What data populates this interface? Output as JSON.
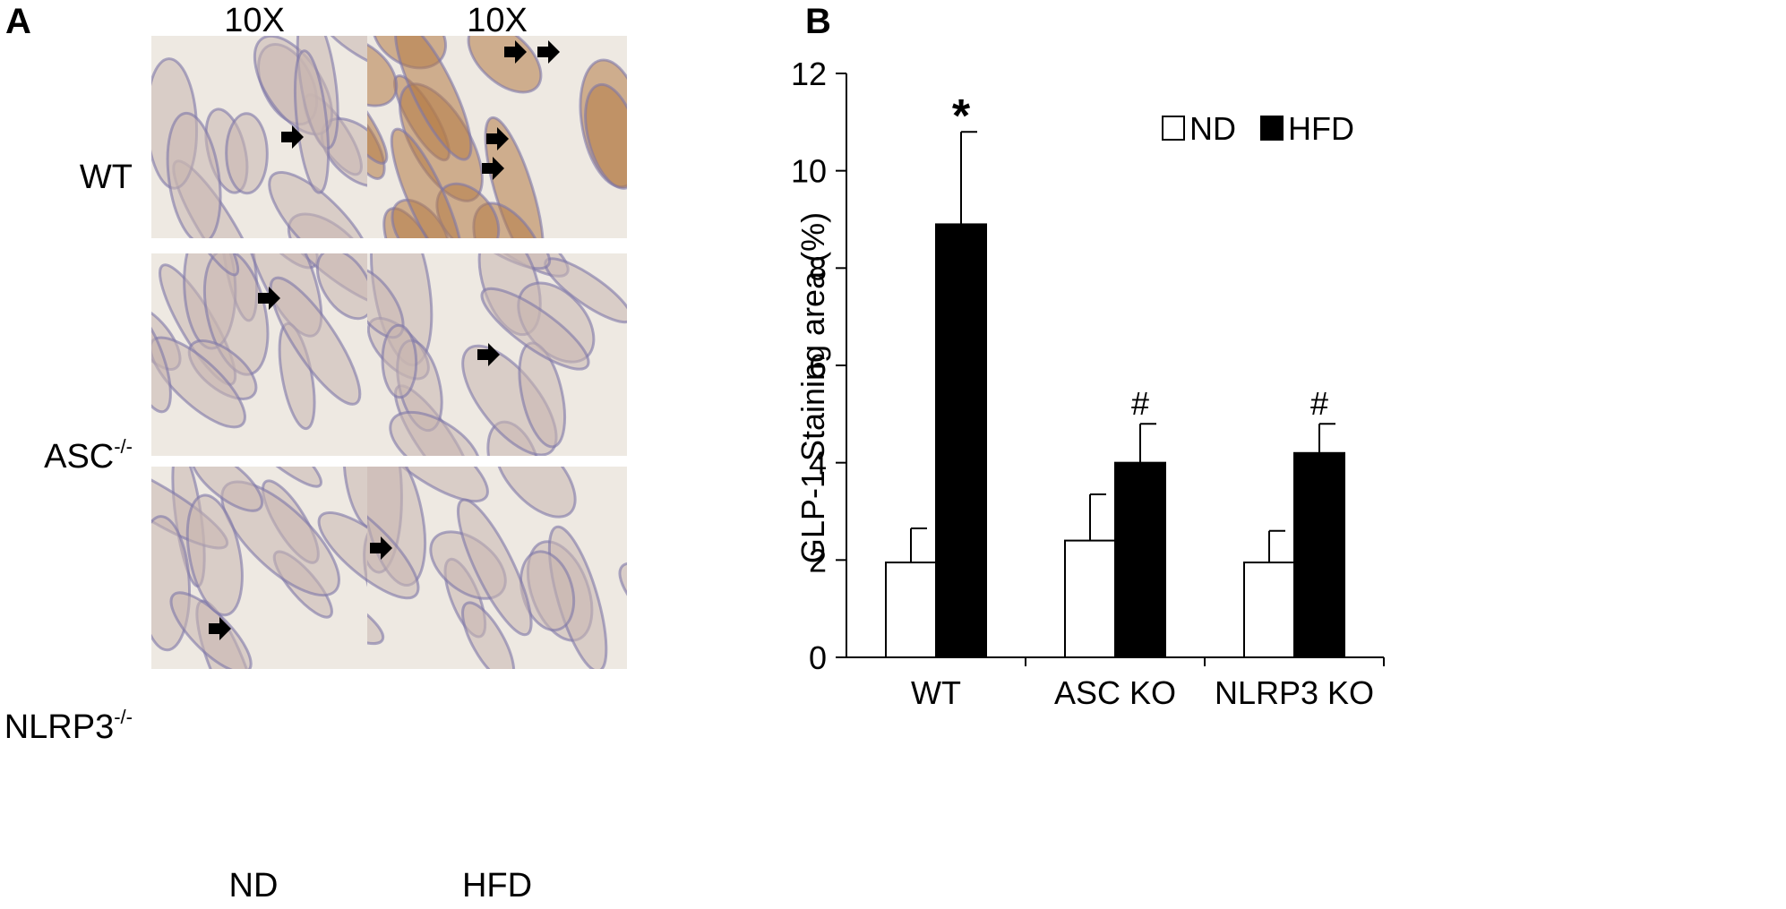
{
  "panel_a": {
    "letter": "A",
    "column_magnifications": [
      "10X",
      "10X"
    ],
    "row_labels": [
      {
        "text": "WT",
        "sup": ""
      },
      {
        "text": "ASC",
        "sup": "-/-"
      },
      {
        "text": "NLRP3",
        "sup": "-/-"
      }
    ],
    "column_labels": [
      "ND",
      "HFD"
    ],
    "colors": {
      "ND": "#c9b7b0",
      "HFD": "#b57c47",
      "stroma": "#eee9e2",
      "nuclei": "#7d76a8",
      "arrow": "#000000"
    }
  },
  "panel_b": {
    "letter": "B"
  },
  "chart_data": {
    "type": "bar",
    "categories": [
      "WT",
      "ASC KO",
      "NLRP3 KO"
    ],
    "series": [
      {
        "name": "ND",
        "color": "#ffffff",
        "values": [
          1.95,
          2.4,
          1.95
        ],
        "errors": [
          0.7,
          0.95,
          0.65
        ]
      },
      {
        "name": "HFD",
        "color": "#000000",
        "values": [
          8.9,
          4.0,
          4.2
        ],
        "errors": [
          1.9,
          0.8,
          0.6
        ]
      }
    ],
    "annotations": [
      "*",
      "#",
      "#"
    ],
    "title": "",
    "xlabel": "",
    "ylabel": "GLP-1 Staining area (%)",
    "ylim": [
      0,
      12
    ],
    "yticks": [
      0,
      2,
      4,
      6,
      8,
      10,
      12
    ],
    "grid": false,
    "legend": "top-right"
  }
}
